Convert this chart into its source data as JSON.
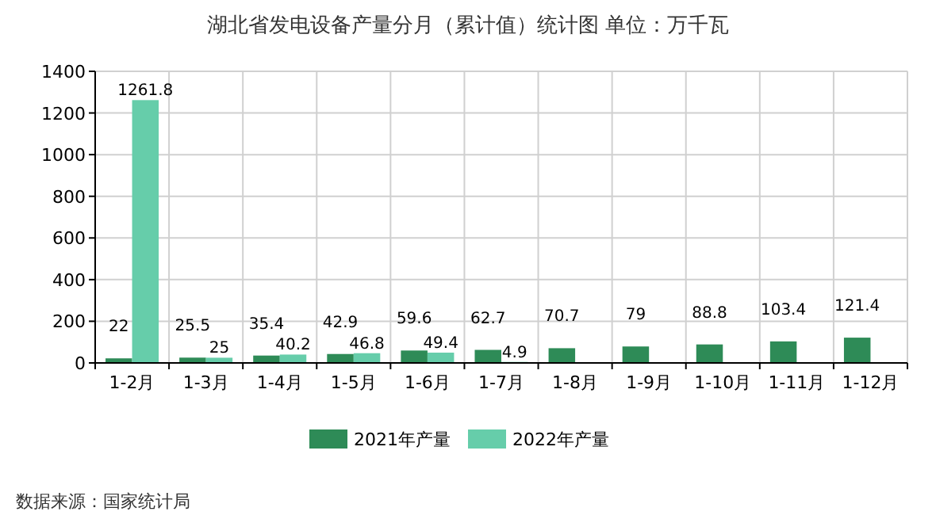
{
  "chart_data": {
    "type": "bar",
    "title": "湖北省发电设备产量分月（累计值）统计图 单位：万千瓦",
    "categories": [
      "1-2月",
      "1-3月",
      "1-4月",
      "1-5月",
      "1-6月",
      "1-7月",
      "1-8月",
      "1-9月",
      "1-10月",
      "1-11月",
      "1-12月"
    ],
    "series": [
      {
        "name": "2021年产量",
        "color": "#2e8b57",
        "values": [
          22,
          25.5,
          35.4,
          42.9,
          59.6,
          62.7,
          70.7,
          79,
          88.8,
          103.4,
          121.4
        ]
      },
      {
        "name": "2022年产量",
        "color": "#66cdaa",
        "values": [
          1261.8,
          25,
          40.2,
          46.8,
          49.4,
          4.9,
          null,
          null,
          null,
          null,
          null
        ]
      }
    ],
    "ylim": [
      0,
      1400
    ],
    "yticks": [
      0,
      200,
      400,
      600,
      800,
      1000,
      1200,
      1400
    ],
    "grid": true,
    "legend": "bottom",
    "data_labels": true,
    "annotations": [
      "数据来源：国家统计局"
    ]
  }
}
